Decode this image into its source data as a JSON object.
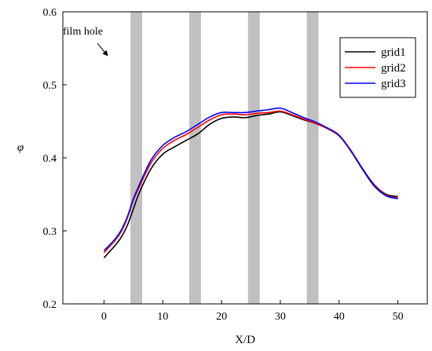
{
  "chart_data": {
    "type": "line",
    "title": "",
    "xlabel": "X/D",
    "ylabel": "φ",
    "xlim": [
      -7,
      55
    ],
    "ylim": [
      0.2,
      0.6
    ],
    "xticks": [
      0,
      10,
      20,
      30,
      40,
      50
    ],
    "yticks": [
      0.2,
      0.3,
      0.4,
      0.5,
      0.6
    ],
    "xtick_labels": [
      "0",
      "10",
      "20",
      "30",
      "40",
      "50"
    ],
    "ytick_labels": [
      "0.2",
      "0.3",
      "0.4",
      "0.5",
      "0.6"
    ],
    "grid": false,
    "legend_position": "top-right",
    "film_holes": [
      {
        "x_start": 4.5,
        "x_end": 6.5
      },
      {
        "x_start": 14.5,
        "x_end": 16.5
      },
      {
        "x_start": 24.5,
        "x_end": 26.5
      },
      {
        "x_start": 34.5,
        "x_end": 36.5
      }
    ],
    "film_hole_color": "#c0c0c0",
    "annotation": {
      "text": "film hole"
    },
    "series": [
      {
        "name": "grid1",
        "color": "#000000",
        "x": [
          0,
          1,
          2,
          3,
          4,
          5,
          6,
          8,
          10,
          12,
          14,
          16,
          18,
          20,
          22,
          24,
          26,
          28,
          30,
          32,
          34,
          36,
          38,
          40,
          42,
          44,
          46,
          48,
          50
        ],
        "y": [
          0.263,
          0.272,
          0.281,
          0.292,
          0.308,
          0.33,
          0.352,
          0.385,
          0.405,
          0.415,
          0.424,
          0.433,
          0.446,
          0.454,
          0.456,
          0.455,
          0.458,
          0.46,
          0.463,
          0.458,
          0.452,
          0.447,
          0.44,
          0.43,
          0.41,
          0.385,
          0.363,
          0.35,
          0.347
        ]
      },
      {
        "name": "grid2",
        "color": "#ff0000",
        "x": [
          0,
          1,
          2,
          3,
          4,
          5,
          6,
          8,
          10,
          12,
          14,
          16,
          18,
          20,
          22,
          24,
          26,
          28,
          30,
          32,
          34,
          36,
          38,
          40,
          42,
          44,
          46,
          48,
          50
        ],
        "y": [
          0.27,
          0.279,
          0.288,
          0.3,
          0.318,
          0.342,
          0.36,
          0.393,
          0.413,
          0.424,
          0.432,
          0.442,
          0.452,
          0.459,
          0.46,
          0.459,
          0.461,
          0.462,
          0.464,
          0.459,
          0.453,
          0.447,
          0.44,
          0.43,
          0.409,
          0.384,
          0.362,
          0.349,
          0.345
        ]
      },
      {
        "name": "grid3",
        "color": "#0000ff",
        "x": [
          0,
          1,
          2,
          3,
          4,
          5,
          6,
          8,
          10,
          12,
          14,
          16,
          18,
          20,
          22,
          24,
          26,
          28,
          30,
          32,
          34,
          36,
          38,
          40,
          42,
          44,
          46,
          48,
          50
        ],
        "y": [
          0.273,
          0.281,
          0.29,
          0.302,
          0.32,
          0.344,
          0.363,
          0.397,
          0.417,
          0.428,
          0.436,
          0.446,
          0.456,
          0.462,
          0.462,
          0.462,
          0.464,
          0.466,
          0.468,
          0.462,
          0.455,
          0.449,
          0.441,
          0.431,
          0.41,
          0.384,
          0.361,
          0.348,
          0.344
        ]
      }
    ]
  }
}
